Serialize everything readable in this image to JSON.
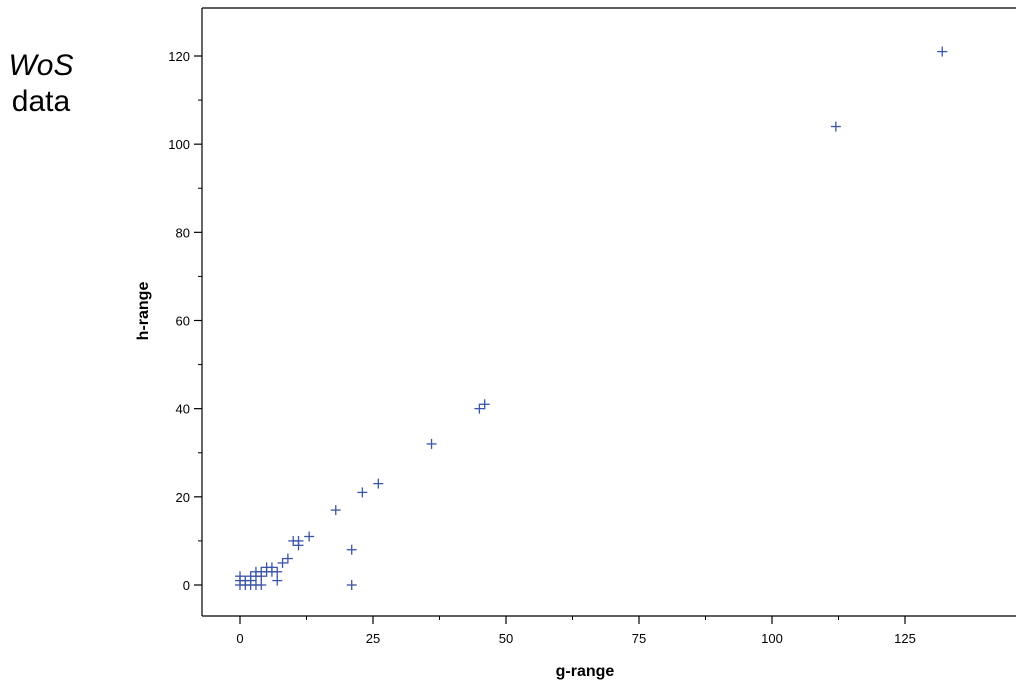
{
  "side_label": {
    "line1": "WoS",
    "line2": "data"
  },
  "colors": {
    "marker": "#3b55a8",
    "axis": "#000000"
  },
  "chart_data": {
    "type": "scatter",
    "title": "",
    "xlabel": "g-range",
    "ylabel": "h-range",
    "xlim": [
      -7,
      146
    ],
    "ylim": [
      -7,
      132
    ],
    "xticks": [
      0,
      25,
      50,
      75,
      100,
      125
    ],
    "yticks": [
      0,
      20,
      40,
      60,
      80,
      100,
      120
    ],
    "marker": "plus",
    "grid": false,
    "series": [
      {
        "points": [
          [
            0,
            0
          ],
          [
            0,
            1
          ],
          [
            0,
            2
          ],
          [
            1,
            0
          ],
          [
            1,
            1
          ],
          [
            2,
            0
          ],
          [
            2,
            1
          ],
          [
            2,
            2
          ],
          [
            3,
            0
          ],
          [
            3,
            2
          ],
          [
            3,
            3
          ],
          [
            4,
            0
          ],
          [
            4,
            2
          ],
          [
            4,
            3
          ],
          [
            5,
            3
          ],
          [
            5,
            4
          ],
          [
            6,
            3
          ],
          [
            6,
            4
          ],
          [
            7,
            1
          ],
          [
            7,
            3
          ],
          [
            8,
            5
          ],
          [
            9,
            6
          ],
          [
            10,
            10
          ],
          [
            11,
            9
          ],
          [
            11,
            10
          ],
          [
            13,
            11
          ],
          [
            18,
            17
          ],
          [
            21,
            0
          ],
          [
            21,
            8
          ],
          [
            23,
            21
          ],
          [
            26,
            23
          ],
          [
            36,
            32
          ],
          [
            45,
            40
          ],
          [
            46,
            41
          ],
          [
            112,
            104
          ],
          [
            132,
            121
          ]
        ]
      }
    ]
  }
}
